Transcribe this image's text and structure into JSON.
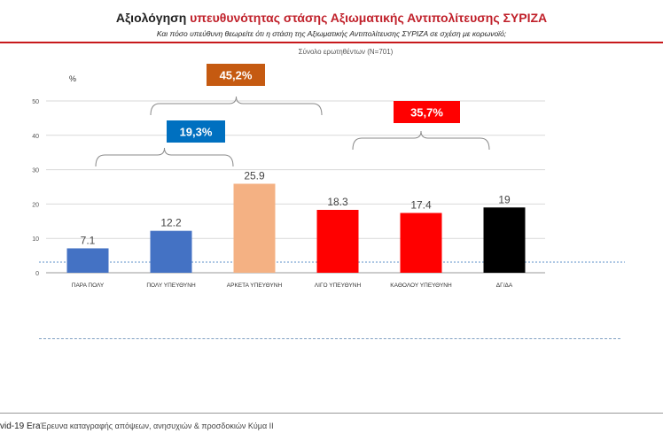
{
  "header": {
    "title_part1": "Αξιολόγηση ",
    "title_part2": "υπευθυνότητας στάσης ",
    "title_part3": "Αξιωματικής Αντιπολίτευσης ΣΥΡΙΖΑ",
    "subtitle": "Και πόσο υπεύθυνη θεωρείτε ότι η στάση της Αξιωματικής Αντιπολίτευσης ΣΥΡΙΖΑ σε σχέση με κορωνοϊό;",
    "sample": "Σύνολο ερωτηθέντων (Ν=701)"
  },
  "chart_data": {
    "type": "bar",
    "ylabel": "%",
    "ylim": [
      0,
      50
    ],
    "yticks": [
      0,
      10,
      20,
      30,
      40,
      50
    ],
    "categories": [
      "ΠΑΡΑ ΠΟΛΥ",
      "ΠΟΛΥ ΥΠΕΥΘΥΝΗ",
      "ΑΡΚΕΤΑ ΥΠΕΥΘΥΝΗ",
      "ΛΙΓΟ ΥΠΕΥΘΥΝΗ",
      "ΚΑΘΟΛΟΥ ΥΠΕΥΘΥΝΗ",
      "ΔΓ/ΔΑ"
    ],
    "values": [
      7.1,
      12.2,
      25.9,
      18.3,
      17.4,
      19
    ],
    "value_labels": [
      "7.1",
      "12.2",
      "25.9",
      "18.3",
      "17.4",
      "19"
    ],
    "colors": [
      "#4472c4",
      "#4472c4",
      "#f4b183",
      "#ff0000",
      "#ff0000",
      "#000000"
    ],
    "groups": [
      {
        "label": "19,3%",
        "from": 0,
        "to": 1,
        "color": "#0070c0"
      },
      {
        "label": "45,2%",
        "from": 1,
        "to": 3,
        "color": "#c55a11"
      },
      {
        "label": "35,7%",
        "from": 3,
        "to": 4,
        "color": "#ff0000"
      }
    ]
  },
  "footer": {
    "brand": "vid-19 Era",
    "text": "Έρευνα καταγραφής απόψεων, ανησυχιών & προσδοκιών Κύμα ΙΙ"
  }
}
